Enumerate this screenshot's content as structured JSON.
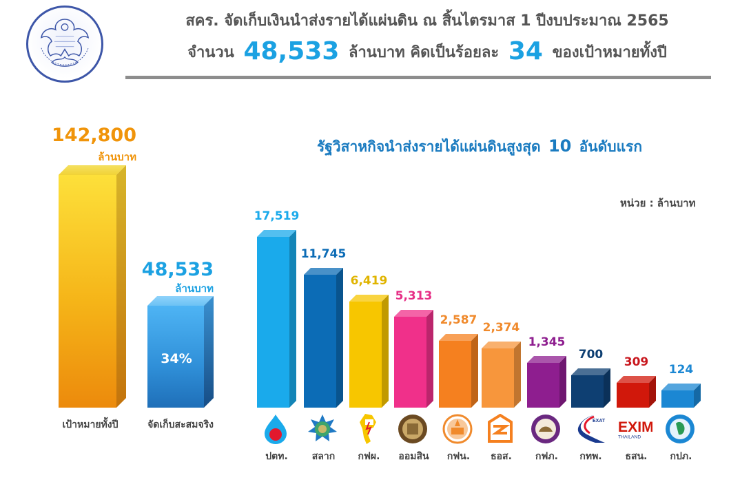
{
  "header": {
    "title_line1": "สคร. จัดเก็บเงินนำส่งรายได้แผ่นดิน ณ สิ้นไตรมาส 1 ปีงบประมาณ 2565",
    "title_line2_prefix": "จำนวน",
    "title_line2_amount": "48,533",
    "title_line2_mid": "ล้านบาท คิดเป็นร้อยละ",
    "title_line2_percent": "34",
    "title_line2_suffix": "ของเป้าหมายทั้งปี",
    "accent_color": "#1ba1e2"
  },
  "logo": {
    "name": "sepo-garuda-logo",
    "text": "สำนักงานคณะกรรมการนโยบายรัฐวิสาหกิจ"
  },
  "left_chart": {
    "target": {
      "value": "142,800",
      "unit": "ล้านบาท",
      "label": "เป้าหมายทั้งปี",
      "color": "#f0940a"
    },
    "actual": {
      "value": "48,533",
      "unit": "ล้านบาท",
      "label": "จัดเก็บสะสมจริง",
      "percent": "34%",
      "color": "#1ba1e2"
    }
  },
  "right_chart": {
    "title_prefix": "รัฐวิสาหกิจนำส่งรายได้แผ่นดินสูงสุด",
    "title_number": "10",
    "title_suffix": "อันดับแรก",
    "unit_note": "หน่วย : ล้านบาท"
  },
  "chart_data": [
    {
      "type": "bar",
      "title": "สคร. จัดเก็บเงินนำส่งรายได้แผ่นดิน ณ สิ้นไตรมาส 1 ปีงบประมาณ 2565",
      "categories": [
        "เป้าหมายทั้งปี",
        "จัดเก็บสะสมจริง"
      ],
      "values": [
        142800,
        48533
      ],
      "value_labels": [
        "142,800",
        "48,533"
      ],
      "annotations": [
        "34%"
      ],
      "ylabel": "ล้านบาท",
      "grid": false
    },
    {
      "type": "bar",
      "title": "รัฐวิสาหกิจนำส่งรายได้แผ่นดินสูงสุด 10 อันดับแรก",
      "categories": [
        "ปตท.",
        "สลาก",
        "กฟผ.",
        "ออมสิน",
        "กฟน.",
        "ธอส.",
        "กฟภ.",
        "กทพ.",
        "ธสน.",
        "กปภ."
      ],
      "values": [
        17519,
        11745,
        6419,
        5313,
        2587,
        2374,
        1345,
        700,
        309,
        124
      ],
      "value_labels": [
        "17,519",
        "11,745",
        "6,419",
        "5,313",
        "2,587",
        "2,374",
        "1,345",
        "700",
        "309",
        "124"
      ],
      "colors": [
        "#1aaaeb",
        "#0c6cb6",
        "#f7c600",
        "#f0308a",
        "#f5801f",
        "#f7963c",
        "#8e1e8f",
        "#0e3f72",
        "#d1180b",
        "#1b87d3"
      ],
      "ylabel": "หน่วย : ล้านบาท",
      "grid": false,
      "legend": "none"
    }
  ],
  "bars": [
    {
      "value": "17,519",
      "label": "ปตท.",
      "color": "#1aaaeb",
      "label_color": "#1aaaeb",
      "icon": "ptt-flame-icon"
    },
    {
      "value": "11,745",
      "label": "สลาก",
      "color": "#0c6cb6",
      "label_color": "#0c6cb6",
      "icon": "lottery-star-emblem-icon"
    },
    {
      "value": "6,419",
      "label": "กฟผ.",
      "color": "#f7c600",
      "label_color": "#e0b400",
      "icon": "egat-thailand-map-icon"
    },
    {
      "value": "5,313",
      "label": "ออมสิน",
      "color": "#f0308a",
      "label_color": "#e62f86",
      "icon": "gsb-seal-icon"
    },
    {
      "value": "2,587",
      "label": "กฟน.",
      "color": "#f5801f",
      "label_color": "#f08a2c",
      "icon": "mea-seal-icon"
    },
    {
      "value": "2,374",
      "label": "ธอส.",
      "color": "#f7963c",
      "label_color": "#f08a2c",
      "icon": "ghb-house-icon"
    },
    {
      "value": "1,345",
      "label": "กฟภ.",
      "color": "#8e1e8f",
      "label_color": "#8e1e8f",
      "icon": "pea-seal-icon"
    },
    {
      "value": "700",
      "label": "กทพ.",
      "color": "#0e3f72",
      "label_color": "#0e3f72",
      "icon": "exat-road-icon"
    },
    {
      "value": "309",
      "label": "ธสน.",
      "color": "#d1180b",
      "label_color": "#c8171e",
      "icon": "exim-thailand-icon"
    },
    {
      "value": "124",
      "label": "กปภ.",
      "color": "#1b87d3",
      "label_color": "#1b87d3",
      "icon": "pwa-seal-icon"
    }
  ],
  "icons_text": {
    "exat": "EXAT",
    "exim": "EXIM",
    "exim_sub": "THAILAND"
  }
}
